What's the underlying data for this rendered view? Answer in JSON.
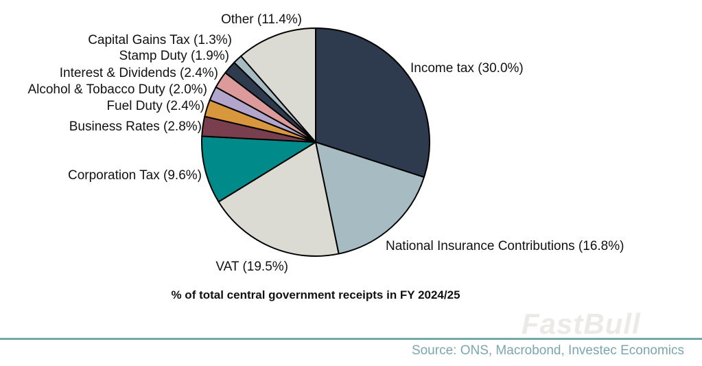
{
  "chart_data": {
    "type": "pie",
    "title": "% of total central government receipts in FY 2024/25",
    "unit": "%",
    "slices": [
      {
        "name": "Income tax",
        "value": 30.0,
        "label": "Income tax (30.0%)",
        "color": "#2e3a4e"
      },
      {
        "name": "National Insurance Contributions",
        "value": 16.8,
        "label": "National Insurance Contributions (16.8%)",
        "color": "#a7bbc3"
      },
      {
        "name": "VAT",
        "value": 19.5,
        "label": "VAT (19.5%)",
        "color": "#dcdbd3"
      },
      {
        "name": "Corporation Tax",
        "value": 9.6,
        "label": "Corporation Tax (9.6%)",
        "color": "#008a8a"
      },
      {
        "name": "Business Rates",
        "value": 2.8,
        "label": "Business Rates (2.8%)",
        "color": "#7a3f4e"
      },
      {
        "name": "Fuel Duty",
        "value": 2.4,
        "label": "Fuel Duty (2.4%)",
        "color": "#d9973d"
      },
      {
        "name": "Alcohol & Tobacco Duty",
        "value": 2.0,
        "label": "Alcohol & Tobacco Duty (2.0%)",
        "color": "#b2a6cc"
      },
      {
        "name": "Interest & Dividends",
        "value": 2.4,
        "label": "Interest & Dividends (2.4%)",
        "color": "#dd9a9a"
      },
      {
        "name": "Stamp Duty",
        "value": 1.9,
        "label": "Stamp Duty (1.9%)",
        "color": "#2e3a4e"
      },
      {
        "name": "Capital Gains Tax",
        "value": 1.3,
        "label": "Capital Gains Tax (1.3%)",
        "color": "#a7bbc3"
      },
      {
        "name": "Other",
        "value": 11.4,
        "label": "Other (11.4%)",
        "color": "#dcdbd3"
      }
    ]
  },
  "caption": "% of total central government receipts in FY 2024/25",
  "source": "Source: ONS, Macrobond, Investec Economics",
  "watermark": "FastBull",
  "colors": {
    "divider": "#6fa9a9",
    "source_text": "#7aa6ad",
    "slice_stroke": "#000000"
  }
}
